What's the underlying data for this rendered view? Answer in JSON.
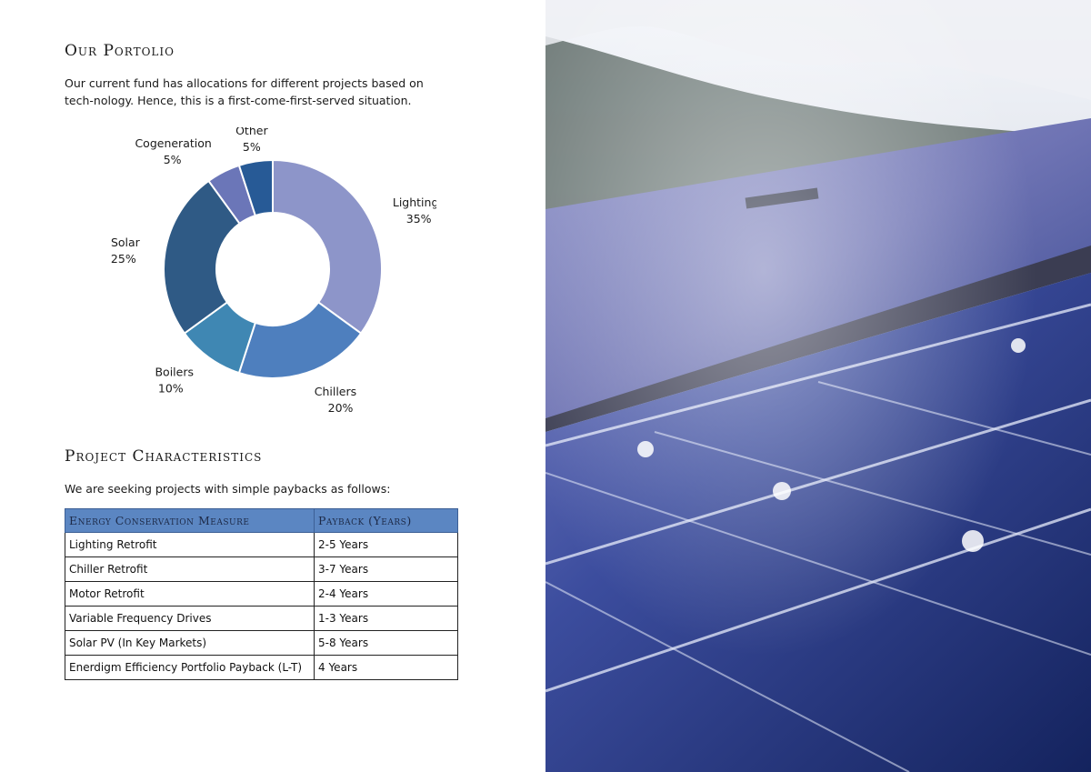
{
  "portfolio": {
    "title": "Our Portolio",
    "intro": "Our current fund has allocations for different projects based on tech-nology.  Hence, this is a first-come-first-served situation."
  },
  "chart_data": {
    "type": "pie",
    "title": "",
    "slices": [
      {
        "label": "Lighting",
        "value": 35,
        "value_label": "35%",
        "color": "#8d95c9"
      },
      {
        "label": "Chillers",
        "value": 20,
        "value_label": "20%",
        "color": "#4e7fbe"
      },
      {
        "label": "Boilers",
        "value": 10,
        "value_label": "10%",
        "color": "#3f87b3"
      },
      {
        "label": "Solar",
        "value": 25,
        "value_label": "25%",
        "color": "#2f5a85"
      },
      {
        "label": "Cogeneration",
        "value": 5,
        "value_label": "5%",
        "color": "#6b76b8"
      },
      {
        "label": "Other",
        "value": 5,
        "value_label": "5%",
        "color": "#275a96"
      }
    ]
  },
  "characteristics": {
    "title": "Project Characteristics",
    "intro": "We are seeking projects with simple paybacks as follows:",
    "columns": [
      "Energy Conservation Measure",
      "Payback (Years)"
    ],
    "rows": [
      [
        "Lighting Retrofit",
        "2-5 Years"
      ],
      [
        "Chiller Retrofit",
        "3-7 Years"
      ],
      [
        "Motor Retrofit",
        "2-4 Years"
      ],
      [
        "Variable Frequency Drives",
        "1-3 Years"
      ],
      [
        "Solar PV (In Key Markets)",
        "5-8 Years"
      ],
      [
        "Enerdigm Efficiency Portfolio Payback (L-T)",
        "4 Years"
      ]
    ]
  },
  "photo": {
    "icon": "solar-panel-photo"
  }
}
